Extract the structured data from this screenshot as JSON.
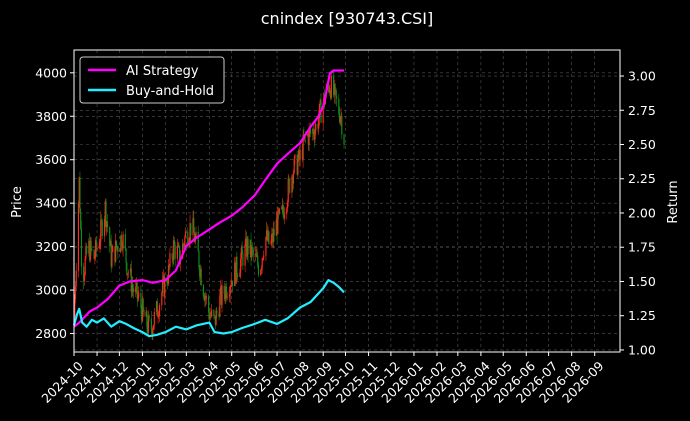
{
  "chart_data": {
    "type": "line",
    "title": "cnindex [930743.CSI]",
    "ylabel_left": "Price",
    "ylabel_right": "Return",
    "xlim": [
      "2024-10-01",
      "2026-10-05"
    ],
    "ylim_left": [
      2715,
      4105
    ],
    "ylim_right": [
      0.985,
      3.19
    ],
    "yticks_left": [
      2800,
      3000,
      3200,
      3400,
      3600,
      3800,
      4000
    ],
    "yticks_right": [
      1.0,
      1.25,
      1.5,
      1.75,
      2.0,
      2.25,
      2.5,
      2.75,
      3.0
    ],
    "xticks": [
      "2024-10",
      "2024-11",
      "2024-12",
      "2025-01",
      "2025-02",
      "2025-03",
      "2025-04",
      "2025-05",
      "2025-06",
      "2025-07",
      "2025-08",
      "2025-09",
      "2025-10",
      "2025-11",
      "2025-12",
      "2026-01",
      "2026-02",
      "2026-03",
      "2026-04",
      "2026-05",
      "2026-06",
      "2026-07",
      "2026-08",
      "2026-09"
    ],
    "grid": true,
    "legend_position": "top-left",
    "colors": {
      "up": "#ff2a1a",
      "down": "#0d8f1a",
      "ai": "#ff00ff",
      "bh": "#22eeff",
      "grid": "#555555"
    },
    "candlestick_price": {
      "dates": [
        "2024-10-01",
        "2024-10-08",
        "2024-10-12",
        "2024-10-20",
        "2024-10-28",
        "2024-11-05",
        "2024-11-12",
        "2024-11-20",
        "2024-11-28",
        "2024-12-05",
        "2024-12-12",
        "2024-12-20",
        "2024-12-28",
        "2025-01-05",
        "2025-01-12",
        "2025-01-20",
        "2025-01-28",
        "2025-02-05",
        "2025-02-12",
        "2025-02-20",
        "2025-02-28",
        "2025-03-08",
        "2025-03-15",
        "2025-03-22",
        "2025-03-31",
        "2025-04-08",
        "2025-04-15",
        "2025-04-22",
        "2025-04-30",
        "2025-05-08",
        "2025-05-15",
        "2025-05-22",
        "2025-05-31",
        "2025-06-08",
        "2025-06-15",
        "2025-06-22",
        "2025-06-30",
        "2025-07-08",
        "2025-07-15",
        "2025-07-22",
        "2025-07-31",
        "2025-08-08",
        "2025-08-15",
        "2025-08-22",
        "2025-08-31",
        "2025-09-05",
        "2025-09-10",
        "2025-09-15",
        "2025-09-20",
        "2025-09-25",
        "2025-09-29"
      ],
      "close": [
        2870,
        3500,
        3050,
        3200,
        3150,
        3250,
        3380,
        3150,
        3200,
        3250,
        3100,
        3000,
        2950,
        2850,
        2820,
        2900,
        3000,
        3080,
        3200,
        3150,
        3250,
        3300,
        3200,
        3050,
        2900,
        2850,
        2950,
        3000,
        3050,
        3100,
        3150,
        3200,
        3150,
        3100,
        3250,
        3200,
        3300,
        3350,
        3450,
        3550,
        3600,
        3700,
        3720,
        3750,
        3850,
        3900,
        3950,
        3900,
        3850,
        3800,
        3700
      ]
    },
    "series": [
      {
        "name": "AI Strategy",
        "x": [
          "2024-10-01",
          "2024-10-08",
          "2024-10-15",
          "2024-10-22",
          "2024-11-01",
          "2024-11-15",
          "2024-12-01",
          "2024-12-15",
          "2025-01-01",
          "2025-01-15",
          "2025-02-01",
          "2025-02-15",
          "2025-03-01",
          "2025-03-15",
          "2025-04-01",
          "2025-04-15",
          "2025-05-01",
          "2025-05-15",
          "2025-06-01",
          "2025-06-15",
          "2025-07-01",
          "2025-07-15",
          "2025-08-01",
          "2025-08-15",
          "2025-08-25",
          "2025-09-01",
          "2025-09-05",
          "2025-09-10",
          "2025-09-15",
          "2025-09-25",
          "2025-09-29"
        ],
        "values": [
          1.17,
          1.2,
          1.24,
          1.28,
          1.31,
          1.37,
          1.47,
          1.5,
          1.51,
          1.49,
          1.51,
          1.58,
          1.76,
          1.82,
          1.88,
          1.93,
          1.98,
          2.04,
          2.13,
          2.24,
          2.36,
          2.43,
          2.51,
          2.63,
          2.7,
          2.78,
          2.88,
          3.02,
          3.04,
          3.04,
          3.04
        ]
      },
      {
        "name": "Buy-and-Hold",
        "x": [
          "2024-10-01",
          "2024-10-05",
          "2024-10-08",
          "2024-10-12",
          "2024-10-18",
          "2024-10-25",
          "2024-11-01",
          "2024-11-10",
          "2024-11-20",
          "2024-12-01",
          "2024-12-10",
          "2024-12-20",
          "2025-01-01",
          "2025-01-10",
          "2025-01-20",
          "2025-02-01",
          "2025-02-15",
          "2025-03-01",
          "2025-03-15",
          "2025-04-01",
          "2025-04-08",
          "2025-04-20",
          "2025-05-01",
          "2025-05-15",
          "2025-06-01",
          "2025-06-15",
          "2025-07-01",
          "2025-07-15",
          "2025-08-01",
          "2025-08-15",
          "2025-09-01",
          "2025-09-08",
          "2025-09-15",
          "2025-09-22",
          "2025-09-29"
        ],
        "values": [
          1.18,
          1.26,
          1.3,
          1.2,
          1.17,
          1.22,
          1.2,
          1.23,
          1.17,
          1.21,
          1.19,
          1.16,
          1.13,
          1.1,
          1.11,
          1.13,
          1.17,
          1.15,
          1.18,
          1.2,
          1.13,
          1.12,
          1.13,
          1.16,
          1.19,
          1.22,
          1.19,
          1.23,
          1.31,
          1.35,
          1.45,
          1.51,
          1.49,
          1.46,
          1.42
        ]
      }
    ]
  }
}
